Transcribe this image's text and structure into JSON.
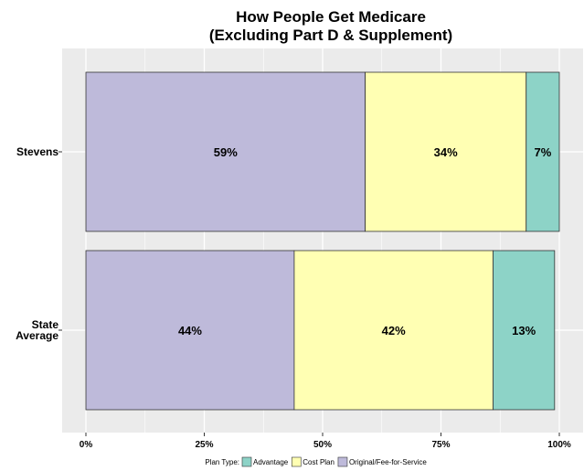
{
  "chart_data": {
    "type": "bar",
    "orientation": "horizontal",
    "stacked": true,
    "title": "How People Get Medicare",
    "subtitle": "(Excluding Part D & Supplement)",
    "categories": [
      "Stevens",
      "State Average"
    ],
    "category_labels": [
      [
        "Stevens"
      ],
      [
        "State",
        "Average"
      ]
    ],
    "series": [
      {
        "name": "Original/Fee-for-Service",
        "values": [
          59,
          44
        ],
        "labels": [
          "59%",
          "44%"
        ],
        "color": "#bebada"
      },
      {
        "name": "Cost Plan",
        "values": [
          34,
          42
        ],
        "labels": [
          "34%",
          "42%"
        ],
        "color": "#ffffb3"
      },
      {
        "name": "Advantage",
        "values": [
          7,
          13
        ],
        "labels": [
          "7%",
          "13%"
        ],
        "color": "#8dd3c7"
      }
    ],
    "xlim": [
      0,
      100
    ],
    "x_ticks": [
      0,
      25,
      50,
      75,
      100
    ],
    "x_tick_labels": [
      "0%",
      "25%",
      "50%",
      "75%",
      "100%"
    ],
    "grid": true,
    "legend": {
      "title": "Plan Type:",
      "position": "bottom",
      "order": [
        "Advantage",
        "Cost Plan",
        "Original/Fee-for-Service"
      ]
    },
    "colors": {
      "panel_background": "#ebebeb",
      "gridline": "#ffffff",
      "bar_border": "#333333"
    }
  }
}
